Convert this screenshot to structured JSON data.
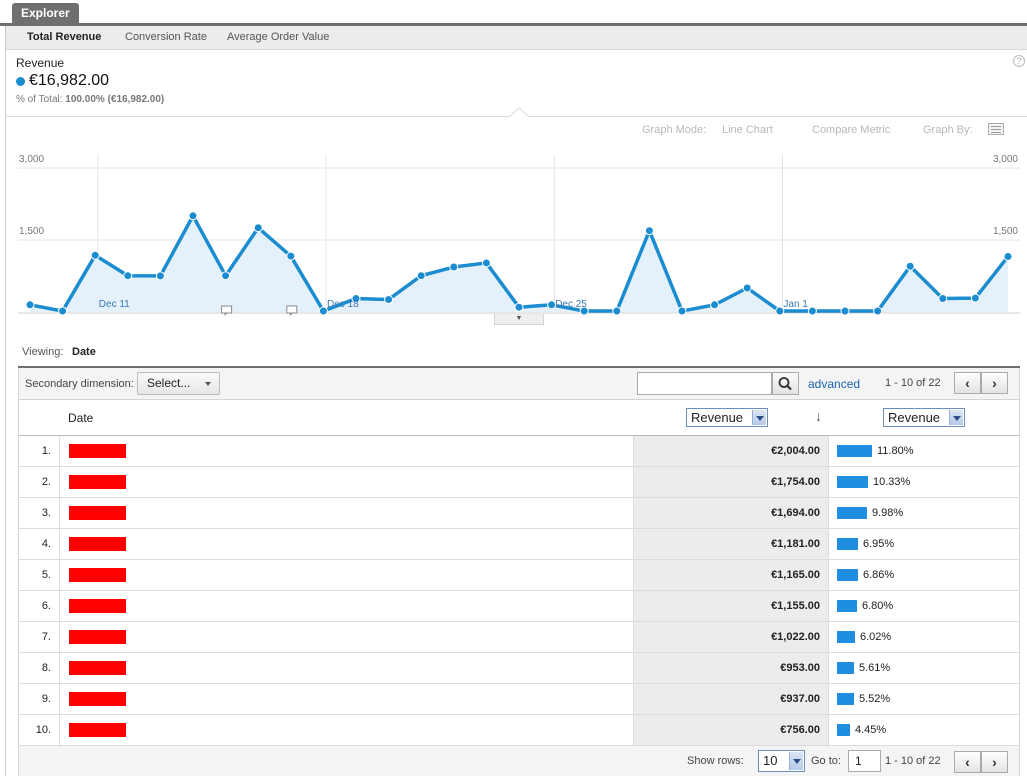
{
  "explorer_tab": "Explorer",
  "metric_tabs": [
    "Total Revenue",
    "Conversion Rate",
    "Average Order Value"
  ],
  "scorecard": {
    "title": "Revenue",
    "value": "€16,982.00",
    "pct_label": "% of Total:",
    "pct_value": "100.00% (€16,982.00)",
    "color": "#1a8ccf"
  },
  "help": "?",
  "graph_controls": {
    "graph_mode_label": "Graph Mode:",
    "graph_mode_value": "Line Chart",
    "compare_metric": "Compare Metric",
    "graph_by": "Graph By:"
  },
  "chart_data": {
    "type": "area",
    "y_ticks_left": [
      "3,000",
      "1,500"
    ],
    "y_ticks_right": [
      "3,000",
      "1,500"
    ],
    "ylim": [
      0,
      3000
    ],
    "x_labels": [
      "Dec 11",
      "Dec 18",
      "Dec 25",
      "Jan 1"
    ],
    "x_label_indices": [
      3,
      10,
      17,
      24
    ],
    "annotation_indices": [
      6,
      8
    ],
    "series": [
      {
        "name": "Revenue",
        "color": "#1a8ccf",
        "values": [
          150,
          20,
          1181,
          756,
          753,
          2004,
          756,
          1754,
          1165,
          20,
          280,
          260,
          756,
          937,
          1022,
          100,
          150,
          20,
          20,
          1694,
          20,
          150,
          500,
          20,
          20,
          20,
          20,
          953,
          280,
          290,
          1155
        ]
      }
    ]
  },
  "chart_toggle": "▼",
  "viewing": {
    "label": "Viewing:",
    "value": "Date"
  },
  "toolbar": {
    "secondary_dimension_label": "Secondary dimension:",
    "select_label": "Select...",
    "search_value": "",
    "advanced_link": "advanced",
    "pager_text": "1 - 10 of 22",
    "prev": "‹",
    "next": "›"
  },
  "table": {
    "col_date": "Date",
    "col_metric_1": "Revenue",
    "col_metric_2": "Revenue",
    "sort_indicator": "↓",
    "rows": [
      {
        "idx": "1.",
        "value": "€2,004.00",
        "pct": "11.80%",
        "share": 0.118
      },
      {
        "idx": "2.",
        "value": "€1,754.00",
        "pct": "10.33%",
        "share": 0.1033
      },
      {
        "idx": "3.",
        "value": "€1,694.00",
        "pct": "9.98%",
        "share": 0.0998
      },
      {
        "idx": "4.",
        "value": "€1,181.00",
        "pct": "6.95%",
        "share": 0.0695
      },
      {
        "idx": "5.",
        "value": "€1,165.00",
        "pct": "6.86%",
        "share": 0.0686
      },
      {
        "idx": "6.",
        "value": "€1,155.00",
        "pct": "6.80%",
        "share": 0.068
      },
      {
        "idx": "7.",
        "value": "€1,022.00",
        "pct": "6.02%",
        "share": 0.0602
      },
      {
        "idx": "8.",
        "value": "€953.00",
        "pct": "5.61%",
        "share": 0.0561
      },
      {
        "idx": "9.",
        "value": "€937.00",
        "pct": "5.52%",
        "share": 0.0552
      },
      {
        "idx": "10.",
        "value": "€756.00",
        "pct": "4.45%",
        "share": 0.0445
      }
    ],
    "bar_color": "#1f8ee0"
  },
  "footer": {
    "show_rows_label": "Show rows:",
    "show_rows_value": "10",
    "goto_label": "Go to:",
    "goto_value": "1",
    "pager_text": "1 - 10 of 22",
    "prev": "‹",
    "next": "›"
  }
}
